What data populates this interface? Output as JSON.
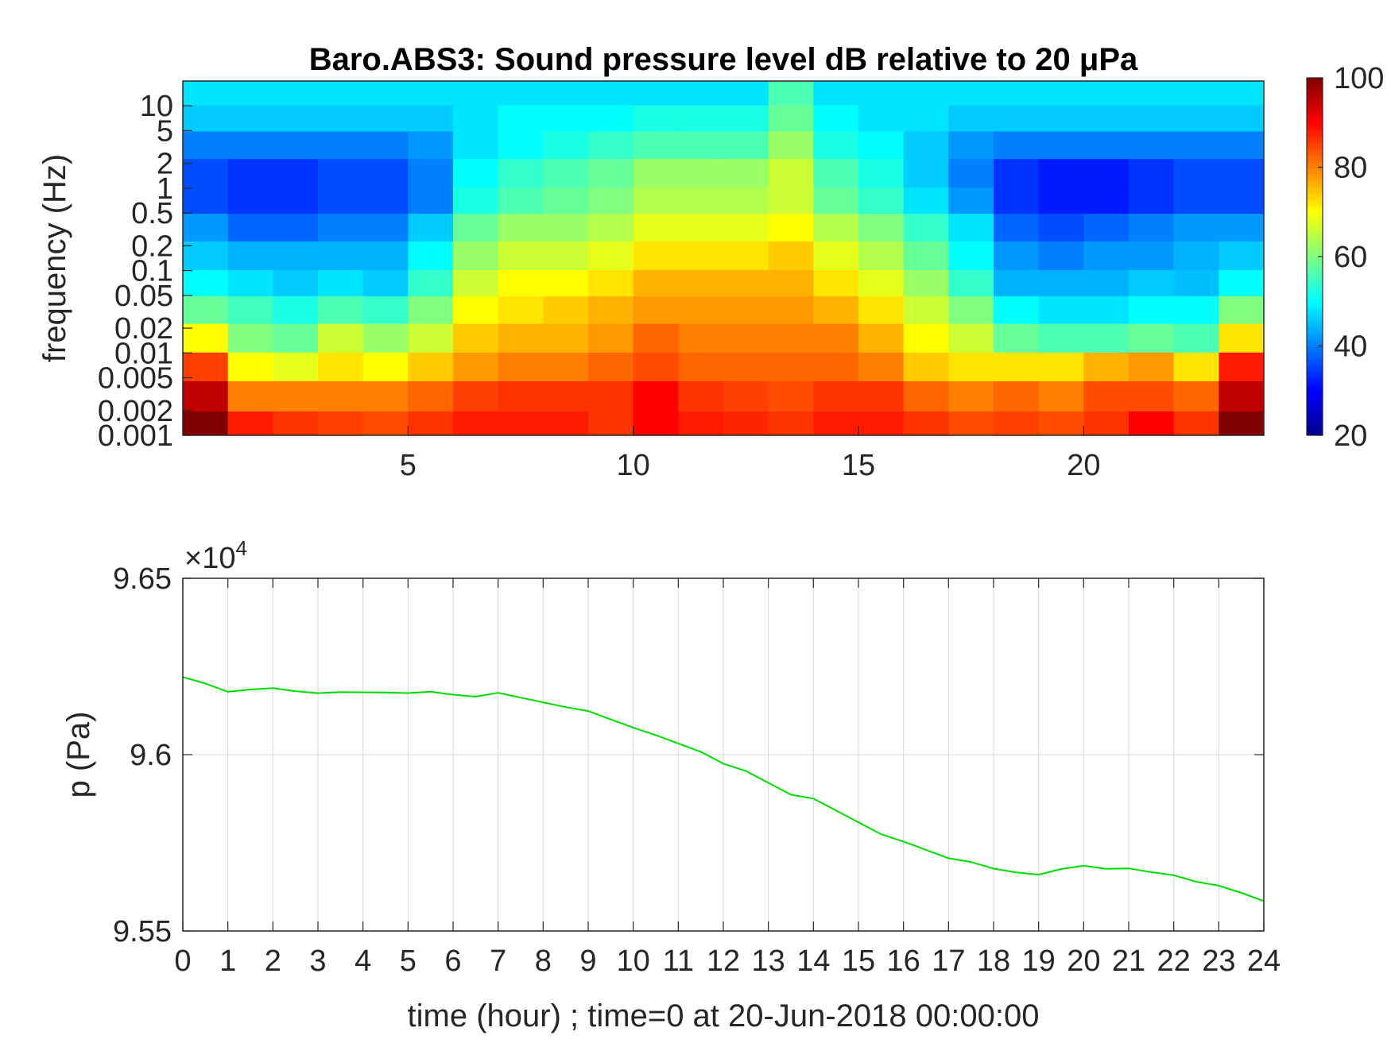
{
  "chart_data": [
    {
      "type": "heatmap",
      "title": "Baro.ABS3: Sound pressure level dB relative to 20 μPa",
      "ylabel": "frequency (Hz)",
      "yscale": "log",
      "xlim": [
        0,
        24
      ],
      "ylim": [
        0.001,
        20
      ],
      "x_ticks": [
        5,
        10,
        15,
        20
      ],
      "y_ticks": [
        0.001,
        0.002,
        0.005,
        0.01,
        0.02,
        0.05,
        0.1,
        0.2,
        0.5,
        1,
        2,
        5,
        10
      ],
      "y_tick_labels": [
        "0.001",
        "0.002",
        "0.005",
        "0.01",
        "0.02",
        "0.05",
        "0.1",
        "0.2",
        "0.5",
        "1",
        "2",
        "5",
        "10"
      ],
      "colormap": "jet",
      "colorbar": {
        "min": 20,
        "max": 100,
        "ticks": [
          20,
          40,
          60,
          80,
          100
        ]
      },
      "cells": {
        "time_hours": [
          0.5,
          1.5,
          2.5,
          3.5,
          4.5,
          5.5,
          6.5,
          7.5,
          8.5,
          9.5,
          10.5,
          11.5,
          12.5,
          13.5,
          14.5,
          15.5,
          16.5,
          17.5,
          18.5,
          19.5,
          20.5,
          21.5,
          22.5,
          23.5
        ],
        "frequency_hz": [
          0.0013,
          0.003,
          0.007,
          0.015,
          0.035,
          0.07,
          0.15,
          0.35,
          0.7,
          1.5,
          3.5,
          7,
          15
        ],
        "spl_db": [
          [
            100,
            88,
            86,
            85,
            84,
            86,
            88,
            88,
            88,
            86,
            90,
            88,
            87,
            86,
            88,
            88,
            86,
            84,
            85,
            84,
            86,
            90,
            86,
            100
          ],
          [
            95,
            80,
            80,
            80,
            80,
            82,
            85,
            86,
            86,
            86,
            90,
            86,
            85,
            84,
            86,
            86,
            82,
            80,
            82,
            80,
            84,
            84,
            82,
            95
          ],
          [
            85,
            70,
            68,
            72,
            70,
            74,
            78,
            80,
            80,
            82,
            84,
            82,
            82,
            82,
            82,
            80,
            74,
            72,
            72,
            72,
            76,
            78,
            72,
            88
          ],
          [
            70,
            60,
            58,
            66,
            62,
            66,
            74,
            76,
            76,
            78,
            82,
            80,
            80,
            80,
            80,
            76,
            70,
            66,
            58,
            56,
            56,
            58,
            56,
            72
          ],
          [
            58,
            55,
            52,
            56,
            54,
            60,
            70,
            72,
            74,
            76,
            78,
            78,
            78,
            78,
            76,
            72,
            66,
            60,
            50,
            48,
            48,
            50,
            50,
            60
          ],
          [
            50,
            48,
            46,
            48,
            46,
            54,
            66,
            70,
            70,
            72,
            76,
            76,
            76,
            76,
            72,
            68,
            62,
            54,
            44,
            44,
            44,
            46,
            45,
            50
          ],
          [
            46,
            44,
            44,
            44,
            44,
            50,
            62,
            66,
            66,
            68,
            72,
            72,
            72,
            74,
            68,
            64,
            58,
            50,
            42,
            40,
            42,
            42,
            44,
            46
          ],
          [
            42,
            38,
            38,
            40,
            40,
            46,
            58,
            62,
            62,
            64,
            68,
            68,
            68,
            70,
            64,
            60,
            54,
            48,
            38,
            36,
            38,
            40,
            42,
            42
          ],
          [
            36,
            34,
            34,
            36,
            36,
            40,
            52,
            56,
            58,
            60,
            64,
            64,
            64,
            66,
            58,
            54,
            48,
            42,
            34,
            32,
            32,
            34,
            36,
            36
          ],
          [
            36,
            34,
            34,
            36,
            36,
            40,
            50,
            54,
            56,
            58,
            62,
            62,
            62,
            66,
            56,
            52,
            46,
            40,
            34,
            32,
            32,
            34,
            36,
            36
          ],
          [
            40,
            40,
            40,
            40,
            40,
            42,
            48,
            50,
            52,
            54,
            56,
            56,
            56,
            62,
            52,
            50,
            46,
            42,
            40,
            40,
            40,
            40,
            40,
            40
          ],
          [
            46,
            46,
            46,
            46,
            46,
            46,
            48,
            50,
            50,
            50,
            52,
            52,
            52,
            58,
            50,
            48,
            48,
            46,
            46,
            46,
            46,
            46,
            46,
            46
          ],
          [
            48,
            48,
            48,
            48,
            48,
            48,
            48,
            48,
            48,
            48,
            48,
            48,
            48,
            56,
            48,
            48,
            48,
            48,
            48,
            48,
            48,
            48,
            48,
            48
          ]
        ]
      }
    },
    {
      "type": "line",
      "xlabel": "time (hour) ; time=0 at 20-Jun-2018 00:00:00",
      "ylabel": "p (Pa)",
      "xlim": [
        0,
        24
      ],
      "ylim": [
        95500,
        96500
      ],
      "x_ticks": [
        0,
        1,
        2,
        3,
        4,
        5,
        6,
        7,
        8,
        9,
        10,
        11,
        12,
        13,
        14,
        15,
        16,
        17,
        18,
        19,
        20,
        21,
        22,
        23,
        24
      ],
      "y_ticks": [
        95500,
        96000,
        96500
      ],
      "y_tick_labels": [
        "9.55",
        "9.6",
        "9.65"
      ],
      "y_exponent_label": "×10",
      "y_exponent_power": "4",
      "grid": true,
      "line_color": "#00dd00",
      "series": [
        {
          "x": [
            0,
            0.5,
            1,
            1.5,
            2,
            2.5,
            3,
            3.5,
            4,
            4.5,
            5,
            5.5,
            6,
            6.5,
            7,
            7.5,
            8,
            8.5,
            9,
            9.5,
            10,
            10.5,
            11,
            11.5,
            12,
            12.5,
            13,
            13.5,
            14,
            14.5,
            15,
            15.5,
            16,
            16.5,
            17,
            17.5,
            18,
            18.5,
            19,
            19.5,
            20,
            20.5,
            21,
            21.5,
            22,
            22.5,
            23,
            23.5,
            24
          ],
          "y": [
            96220,
            96200,
            96180,
            96190,
            96185,
            96180,
            96178,
            96172,
            96175,
            96178,
            96180,
            96175,
            96170,
            96168,
            96170,
            96160,
            96150,
            96140,
            96120,
            96100,
            96080,
            96050,
            96030,
            96010,
            95980,
            95950,
            95920,
            95890,
            95870,
            95840,
            95810,
            95780,
            95750,
            95730,
            95710,
            95690,
            95675,
            95668,
            95665,
            95672,
            95685,
            95680,
            95672,
            95665,
            95660,
            95645,
            95625,
            95608,
            95585
          ]
        }
      ]
    }
  ]
}
